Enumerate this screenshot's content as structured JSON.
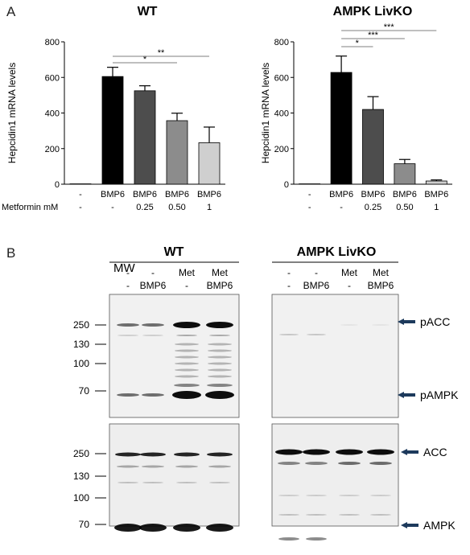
{
  "panel_a_label": "A",
  "panel_b_label": "B",
  "chart_data": [
    {
      "type": "bar",
      "title": "WT",
      "ylabel": "Hepcidin1 mRNA levels",
      "xlabel": "",
      "ylim": [
        0,
        800
      ],
      "yticks": [
        "0",
        "200",
        "400",
        "600",
        "800"
      ],
      "categories_row1": [
        "-",
        "BMP6",
        "BMP6",
        "BMP6",
        "BMP6"
      ],
      "categories_row2": [
        "-",
        "-",
        "0.25",
        "0.50",
        "1"
      ],
      "row2_label": "Metformin mM",
      "values": [
        2,
        605,
        525,
        357,
        233
      ],
      "errors": [
        0,
        52,
        28,
        42,
        88
      ],
      "bar_colors": [
        "#000000",
        "#000000",
        "#4d4d4d",
        "#8c8c8c",
        "#cfcfcf"
      ],
      "significance": [
        {
          "from": 1,
          "to": 3,
          "label": "*"
        },
        {
          "from": 1,
          "to": 4,
          "label": "**"
        }
      ]
    },
    {
      "type": "bar",
      "title": "AMPK LivKO",
      "ylabel": "Hepcidin1 mRNA levels",
      "xlabel": "",
      "ylim": [
        0,
        800
      ],
      "yticks": [
        "0",
        "200",
        "400",
        "600",
        "800"
      ],
      "categories_row1": [
        "-",
        "BMP6",
        "BMP6",
        "BMP6",
        "BMP6"
      ],
      "categories_row2": [
        "-",
        "-",
        "0.25",
        "0.50",
        "1"
      ],
      "values": [
        2,
        628,
        420,
        115,
        18
      ],
      "errors": [
        0,
        92,
        72,
        24,
        6
      ],
      "bar_colors": [
        "#000000",
        "#000000",
        "#4d4d4d",
        "#8c8c8c",
        "#cfcfcf"
      ],
      "significance": [
        {
          "from": 1,
          "to": 2,
          "label": "*"
        },
        {
          "from": 1,
          "to": 3,
          "label": "***"
        },
        {
          "from": 1,
          "to": 4,
          "label": "***"
        }
      ]
    }
  ],
  "blots": {
    "mw_label": "MW",
    "wt_title": "WT",
    "ko_title": "AMPK LivKO",
    "lane_row1": [
      "-",
      "-",
      "Met",
      "Met"
    ],
    "lane_row2": [
      "-",
      "BMP6",
      "-",
      "BMP6"
    ],
    "top_mw": [
      "250",
      "130",
      "100",
      "70"
    ],
    "bottom_mw": [
      "250",
      "130",
      "100",
      "70"
    ],
    "top_bands": [
      "pACC",
      "pAMPK"
    ],
    "bottom_bands": [
      "ACC",
      "AMPK"
    ]
  }
}
